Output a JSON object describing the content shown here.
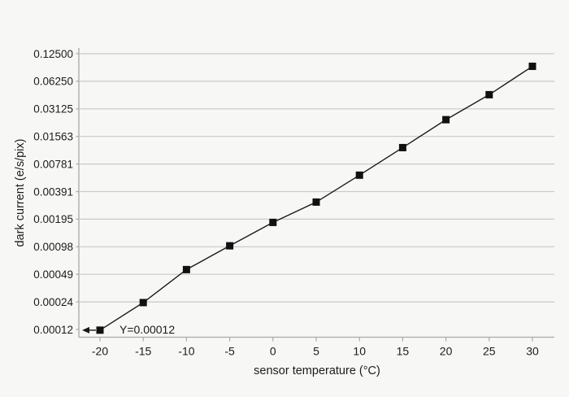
{
  "colors": {
    "background": "#f7f7f6",
    "axis": "#a9a9a9",
    "grid": "#c9c9c9",
    "line": "#1a1a1a",
    "marker": "#111111",
    "text": "#1c1c1c"
  },
  "chart_data": {
    "type": "line",
    "xlabel": "sensor temperature (°C)",
    "ylabel": "dark current (e/s/pix)",
    "x": [
      -20,
      -15,
      -10,
      -5,
      0,
      5,
      10,
      15,
      20,
      25,
      30
    ],
    "series": [
      {
        "name": "dark current",
        "values": [
          0.00012,
          0.00024,
          0.00055,
          0.001,
          0.0018,
          0.003,
          0.0059,
          0.0118,
          0.0238,
          0.0446,
          0.091
        ]
      }
    ],
    "x_ticks": [
      -20,
      -15,
      -10,
      -5,
      0,
      5,
      10,
      15,
      20,
      25,
      30
    ],
    "y_ticks": [
      "0.12500",
      "0.06250",
      "0.03125",
      "0.01563",
      "0.00781",
      "0.00391",
      "0.00195",
      "0.00098",
      "0.00049",
      "0.00024",
      "0.00012"
    ],
    "y_scale": "log2",
    "ylim": [
      0.00012,
      0.125
    ],
    "xlim": [
      -22.5,
      32.5
    ],
    "grid": "horizontal",
    "legend": "none",
    "marker_shape": "square",
    "annotation": {
      "text": "Y=0.00012",
      "x_value": -20,
      "y_value": 0.00012,
      "arrow": "points-left-to-y-axis"
    }
  }
}
